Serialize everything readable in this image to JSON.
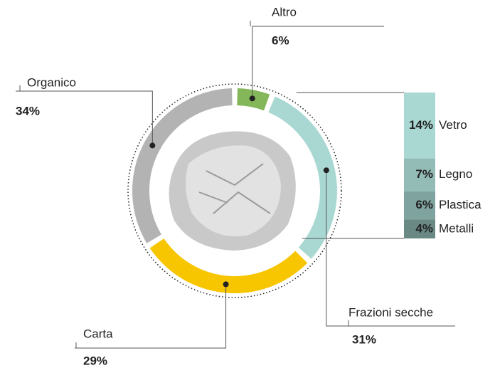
{
  "chart_data": {
    "type": "donut",
    "categories": [
      "Altro",
      "Frazioni secche",
      "Carta",
      "Organico"
    ],
    "values": [
      6,
      31,
      29,
      34
    ],
    "value_labels": [
      "6%",
      "31%",
      "29%",
      "34%"
    ],
    "colors": [
      "#84b65a",
      "#a9d8d3",
      "#f7c600",
      "#b3b3b3"
    ],
    "breakdown": {
      "categories": [
        "Vetro",
        "Legno",
        "Plastica",
        "Metalli"
      ],
      "values": [
        14,
        7,
        6,
        4
      ],
      "value_labels": [
        "14%",
        "7%",
        "6%",
        "4%"
      ],
      "colors": [
        "#a9d8d3",
        "#94bcb7",
        "#7fa39e",
        "#6a8984"
      ]
    }
  }
}
